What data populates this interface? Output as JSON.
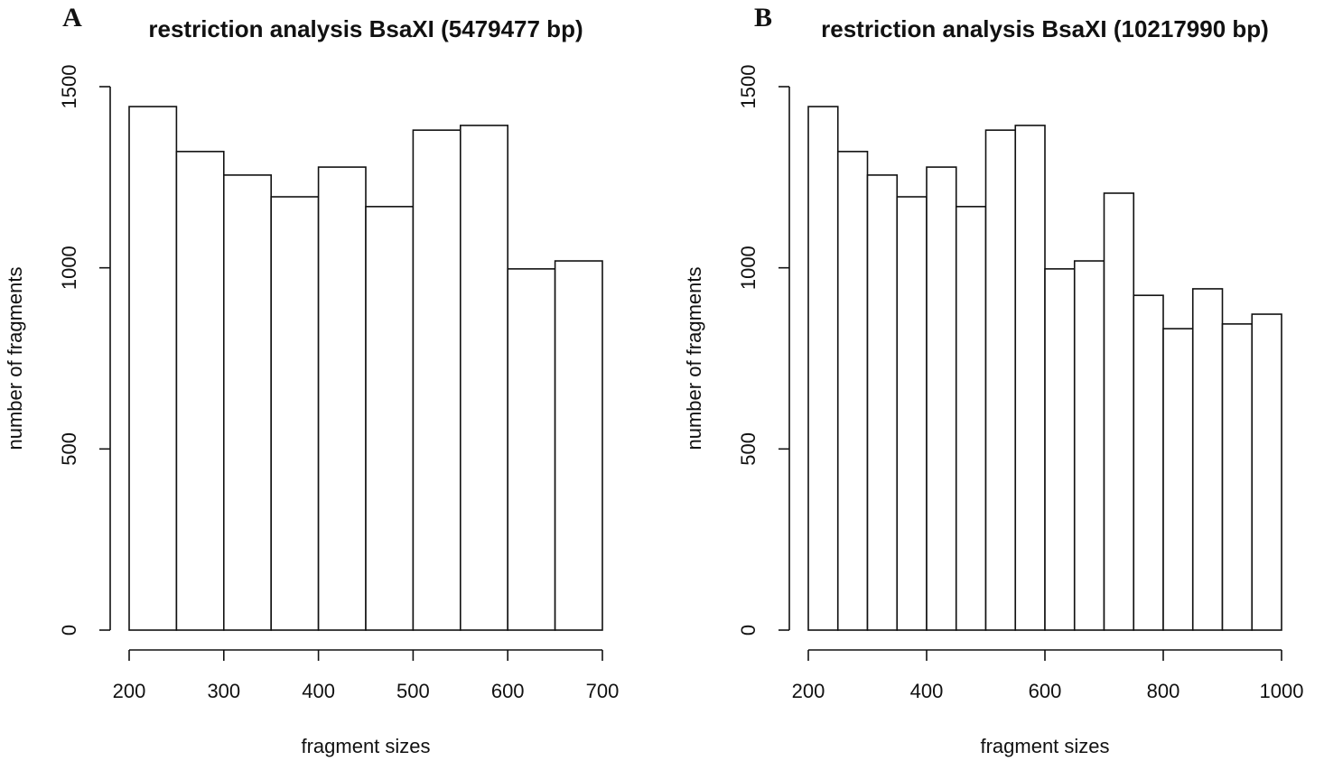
{
  "chart_data": [
    {
      "type": "histogram",
      "panel": "A",
      "title": "restriction analysis BsaXI (5479477 bp)",
      "x_label": "fragment sizes",
      "y_label": "number of fragments",
      "bins": [
        200,
        250,
        300,
        350,
        400,
        450,
        500,
        550,
        600,
        650,
        700
      ],
      "values": [
        1445,
        1321,
        1256,
        1196,
        1278,
        1169,
        1380,
        1393,
        997,
        1019
      ],
      "color": "#ffffff",
      "xlim": [
        200,
        700
      ],
      "xticks": [
        200,
        300,
        400,
        500,
        600,
        700
      ],
      "ylim": [
        0,
        1500
      ],
      "yticks": [
        0,
        500,
        1000,
        1500
      ]
    },
    {
      "type": "histogram",
      "panel": "B",
      "title": "restriction analysis BsaXI (10217990 bp)",
      "x_label": "fragment sizes",
      "y_label": "number of fragments",
      "bins": [
        200,
        250,
        300,
        350,
        400,
        450,
        500,
        550,
        600,
        650,
        700,
        750,
        800,
        850,
        900,
        950,
        1000
      ],
      "values": [
        1445,
        1321,
        1256,
        1196,
        1278,
        1169,
        1380,
        1393,
        997,
        1019,
        1206,
        924,
        832,
        942,
        845,
        872
      ],
      "color": "#ffffff",
      "xlim": [
        200,
        1000
      ],
      "xticks": [
        200,
        400,
        600,
        800,
        1000
      ],
      "ylim": [
        0,
        1500
      ],
      "yticks": [
        0,
        500,
        1000,
        1500
      ]
    }
  ]
}
